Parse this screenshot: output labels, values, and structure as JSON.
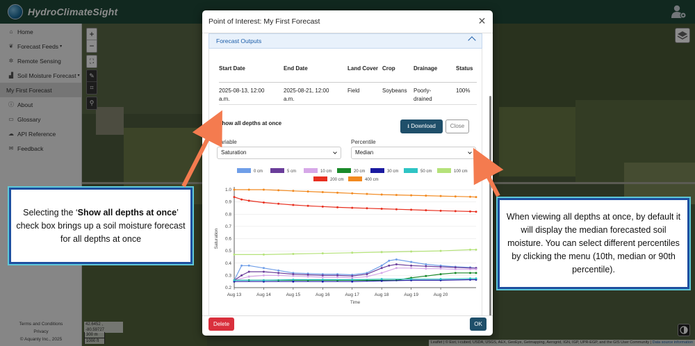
{
  "app": {
    "title": "HydroClimateSight"
  },
  "sidebar": {
    "items": [
      {
        "label": "Home",
        "icon": "home-icon"
      },
      {
        "label": "Forecast Feeds",
        "icon": "leaf-icon",
        "caret": "▾"
      },
      {
        "label": "Remote Sensing",
        "icon": "satellite-icon"
      },
      {
        "label": "Soil Moisture Forecast",
        "icon": "chart-icon",
        "caret": "▾"
      },
      {
        "label": "My First Forecast",
        "icon": ""
      },
      {
        "label": "About",
        "icon": "info-icon"
      },
      {
        "label": "Glossary",
        "icon": "comment-icon"
      },
      {
        "label": "API Reference",
        "icon": "cloud-icon"
      },
      {
        "label": "Feedback",
        "icon": "chat-icon"
      }
    ],
    "footer": {
      "terms": "Terms and Conditions",
      "privacy": "Privacy",
      "copyright": "© Aquanty Inc., 2025"
    }
  },
  "map": {
    "coords": "42.6452 , -80.59727",
    "scale_m": "300 m",
    "scale_ft": "1000 ft",
    "attribution": "Leaflet | © Esri, i-cubed, USDA, USGS, AEX, GeoEye, Getmapping, Aerogrid, IGN, IGP, UPR-EGP, and the GIS User Community",
    "attribution_link": "Data source information"
  },
  "modal": {
    "title": "Point of Interest: My First Forecast",
    "section_title": "Forecast Outputs",
    "table": {
      "headers": [
        "Start Date",
        "End Date",
        "Land Cover",
        "Crop",
        "Drainage",
        "Status"
      ],
      "rows": [
        [
          "2025-08-13, 12:00 a.m.",
          "2025-08-21, 12:00 a.m.",
          "Field",
          "Soybeans",
          "Poorly-drained",
          "100%"
        ]
      ]
    },
    "show_all_depths_label": "Show all depths at once",
    "show_all_depths_checked": true,
    "download_label": "Download",
    "close_label": "Close",
    "variable_label": "Variable",
    "variable_value": "Saturation",
    "percentile_label": "Percentile",
    "percentile_value": "Median",
    "delete_label": "Delete",
    "ok_label": "OK"
  },
  "callouts": {
    "left_pre": "Selecting the ‘",
    "left_bold": "Show all depths at once",
    "left_post": "’ check box brings up a soil moisture forecast for all depths at once",
    "right": "When viewing all depths at once, by default it will display the median forecasted soil moisture. You can select different percentiles by clicking the menu (10th, median or 90th percentile)."
  },
  "chart_data": {
    "type": "line",
    "xlabel": "Time",
    "ylabel": "Saturation",
    "ylim": [
      0.2,
      1.0
    ],
    "yticks": [
      "0.2",
      "0.3",
      "0.4",
      "0.5",
      "0.6",
      "0.7",
      "0.8",
      "0.9",
      "1.0"
    ],
    "x_ticks": [
      "Aug 13",
      "Aug 14",
      "Aug 15",
      "Aug 16",
      "Aug 17",
      "Aug 18",
      "Aug 19",
      "Aug 20"
    ],
    "x_range": [
      0,
      8.2
    ],
    "grid": "horizontal",
    "legend": "top",
    "series": [
      {
        "name": "0 cm",
        "color": "#6f9ee8",
        "x": [
          0,
          0.25,
          0.5,
          1,
          1.5,
          2,
          2.5,
          3,
          3.5,
          4,
          4.5,
          5,
          5.25,
          5.5,
          6,
          6.5,
          7,
          7.5,
          8,
          8.2
        ],
        "values": [
          0.26,
          0.38,
          0.38,
          0.36,
          0.34,
          0.32,
          0.315,
          0.31,
          0.31,
          0.305,
          0.32,
          0.38,
          0.42,
          0.43,
          0.41,
          0.39,
          0.38,
          0.37,
          0.365,
          0.36
        ]
      },
      {
        "name": "5 cm",
        "color": "#6a3d9a",
        "x": [
          0,
          0.25,
          0.5,
          1,
          1.5,
          2,
          2.5,
          3,
          3.5,
          4,
          4.5,
          5,
          5.25,
          5.5,
          6,
          6.5,
          7,
          7.5,
          8,
          8.2
        ],
        "values": [
          0.26,
          0.3,
          0.33,
          0.33,
          0.32,
          0.31,
          0.305,
          0.3,
          0.3,
          0.295,
          0.31,
          0.36,
          0.38,
          0.39,
          0.38,
          0.375,
          0.37,
          0.365,
          0.36,
          0.36
        ]
      },
      {
        "name": "10 cm",
        "color": "#d6a8e8",
        "x": [
          0,
          0.5,
          1,
          1.5,
          2,
          2.5,
          3,
          3.5,
          4,
          4.5,
          5,
          5.5,
          6,
          6.5,
          7,
          7.5,
          8,
          8.2
        ],
        "values": [
          0.26,
          0.29,
          0.3,
          0.3,
          0.295,
          0.29,
          0.285,
          0.285,
          0.28,
          0.29,
          0.32,
          0.36,
          0.36,
          0.355,
          0.355,
          0.35,
          0.35,
          0.35
        ]
      },
      {
        "name": "20 cm",
        "color": "#1a8a2a",
        "x": [
          0,
          0.5,
          1,
          1.5,
          2,
          2.5,
          3,
          3.5,
          4,
          4.5,
          5,
          5.5,
          6,
          6.5,
          7,
          7.5,
          8,
          8.2
        ],
        "values": [
          0.26,
          0.26,
          0.26,
          0.26,
          0.26,
          0.26,
          0.26,
          0.26,
          0.26,
          0.26,
          0.26,
          0.26,
          0.28,
          0.295,
          0.31,
          0.32,
          0.32,
          0.32
        ]
      },
      {
        "name": "30 cm",
        "color": "#1a1aa0",
        "x": [
          0,
          1,
          2,
          3,
          4,
          5,
          6,
          7,
          8,
          8.2
        ],
        "values": [
          0.25,
          0.25,
          0.25,
          0.25,
          0.25,
          0.255,
          0.26,
          0.26,
          0.265,
          0.265
        ]
      },
      {
        "name": "50 cm",
        "color": "#2ec4c4",
        "x": [
          0,
          1,
          2,
          3,
          4,
          5,
          6,
          7,
          8,
          8.2
        ],
        "values": [
          0.26,
          0.26,
          0.265,
          0.265,
          0.265,
          0.27,
          0.27,
          0.27,
          0.275,
          0.275
        ]
      },
      {
        "name": "100 cm",
        "color": "#b5e27a",
        "x": [
          0,
          1,
          2,
          3,
          4,
          5,
          6,
          7,
          8,
          8.2
        ],
        "values": [
          0.47,
          0.47,
          0.475,
          0.48,
          0.485,
          0.49,
          0.495,
          0.5,
          0.51,
          0.51
        ]
      },
      {
        "name": "200 cm",
        "color": "#e83020",
        "x": [
          0,
          0.25,
          0.5,
          1,
          1.5,
          2,
          2.5,
          3,
          3.5,
          4,
          4.5,
          5,
          5.5,
          6,
          6.5,
          7,
          7.5,
          8,
          8.2
        ],
        "values": [
          0.94,
          0.92,
          0.91,
          0.895,
          0.885,
          0.875,
          0.868,
          0.862,
          0.856,
          0.852,
          0.848,
          0.844,
          0.84,
          0.836,
          0.832,
          0.828,
          0.825,
          0.822,
          0.82
        ]
      },
      {
        "name": "400 cm",
        "color": "#f28a20",
        "x": [
          0,
          0.5,
          1,
          1.5,
          2,
          2.5,
          3,
          3.5,
          4,
          4.5,
          5,
          5.5,
          6,
          6.5,
          7,
          7.5,
          8,
          8.2
        ],
        "values": [
          1.0,
          1.0,
          1.0,
          0.995,
          0.99,
          0.985,
          0.98,
          0.975,
          0.97,
          0.965,
          0.96,
          0.957,
          0.954,
          0.951,
          0.948,
          0.945,
          0.942,
          0.94
        ]
      }
    ]
  }
}
